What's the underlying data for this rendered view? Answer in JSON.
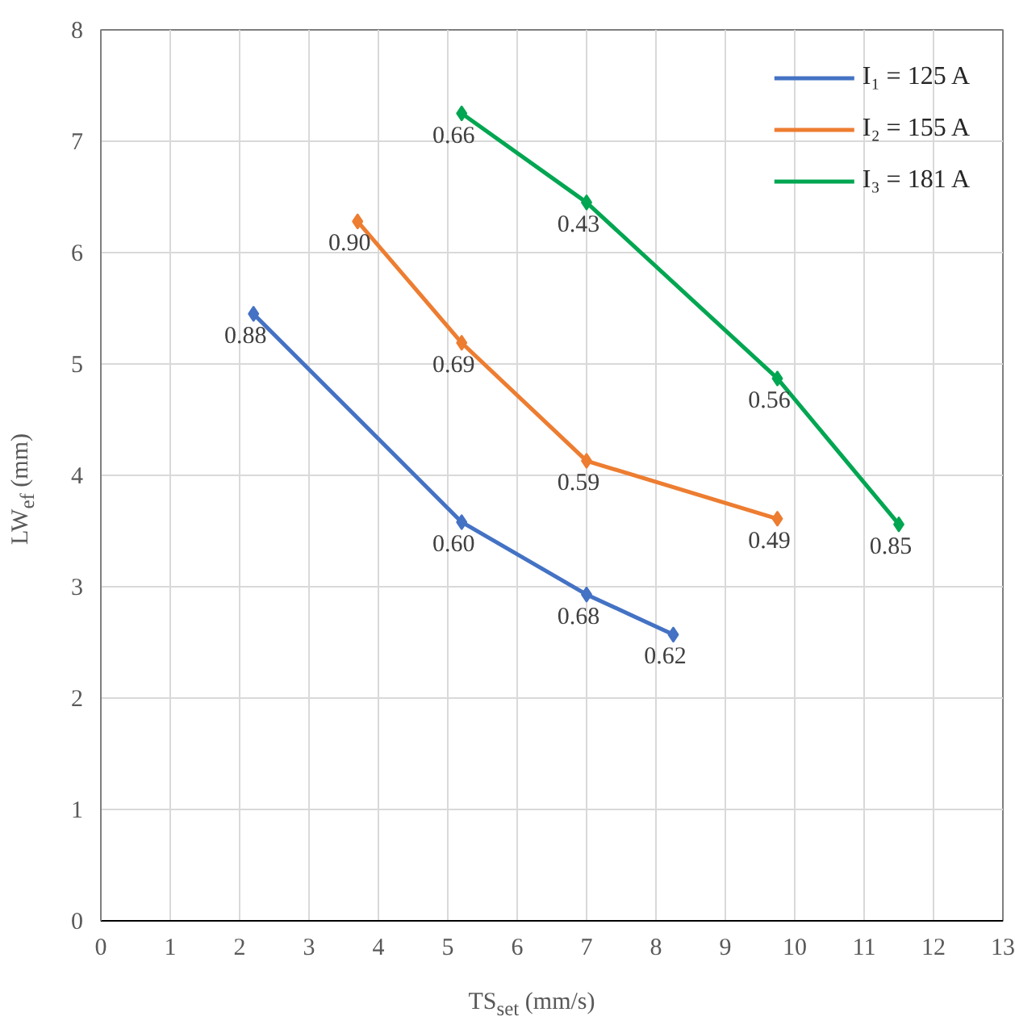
{
  "chart_data": {
    "type": "line",
    "xlabel": "TS$_{set}$ (mm/s)",
    "ylabel": "LW$_{ef}$ (mm)",
    "xlim": [
      0,
      13
    ],
    "xticks": [
      0,
      1,
      2,
      3,
      4,
      5,
      6,
      7,
      8,
      9,
      10,
      11,
      12,
      13
    ],
    "ylim": [
      0,
      8
    ],
    "yticks": [
      0,
      1,
      2,
      3,
      4,
      5,
      6,
      7,
      8
    ],
    "grid": true,
    "legend": "top right",
    "marker": "diamond",
    "line_style": "solid",
    "series": [
      {
        "name": "I₁ = 125 A",
        "color": "#4472c4",
        "x": [
          2.2,
          5.2,
          7.0,
          8.25
        ],
        "values": [
          5.45,
          3.58,
          2.93,
          2.57
        ]
      },
      {
        "name": "I₂ = 155 A",
        "color": "#ed7d31",
        "x": [
          3.7,
          5.2,
          7.0,
          9.75
        ],
        "values": [
          6.28,
          5.19,
          4.13,
          3.61
        ]
      },
      {
        "name": "I₃ = 181 A",
        "color": "#00a651",
        "x": [
          5.2,
          7.0,
          9.75,
          11.5
        ],
        "values": [
          7.25,
          6.45,
          4.87,
          3.56
        ]
      }
    ],
    "annotations": [
      {
        "text": "0.88",
        "x": 2.2,
        "y": 5.45
      },
      {
        "text": "0.60",
        "x": 5.2,
        "y": 3.58
      },
      {
        "text": "0.68",
        "x": 7.0,
        "y": 2.93
      },
      {
        "text": "0.62",
        "x": 8.25,
        "y": 2.57
      },
      {
        "text": "0.90",
        "x": 3.7,
        "y": 6.28
      },
      {
        "text": "0.69",
        "x": 5.2,
        "y": 5.19
      },
      {
        "text": "0.59",
        "x": 7.0,
        "y": 4.13
      },
      {
        "text": "0.49",
        "x": 9.75,
        "y": 3.61
      },
      {
        "text": "0.66",
        "x": 5.2,
        "y": 7.25
      },
      {
        "text": "0.43",
        "x": 7.0,
        "y": 6.45
      },
      {
        "text": "0.56",
        "x": 9.75,
        "y": 4.87
      },
      {
        "text": "0.85",
        "x": 11.5,
        "y": 3.56
      }
    ]
  }
}
